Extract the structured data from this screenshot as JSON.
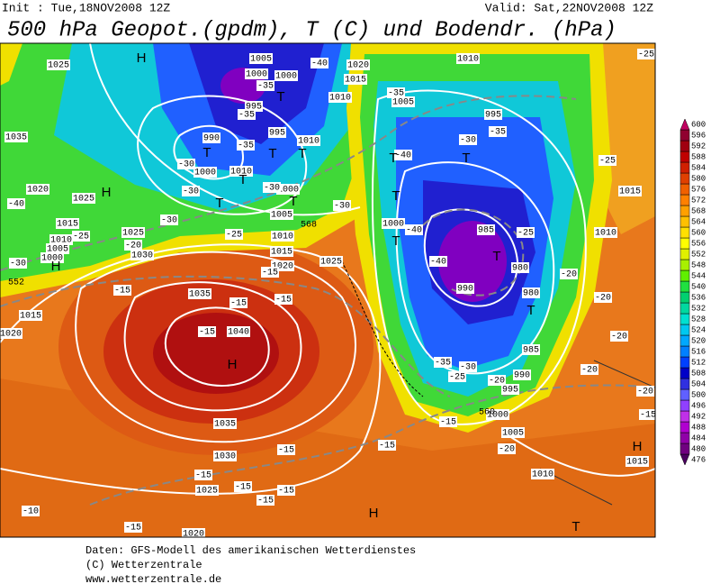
{
  "header": {
    "init": "Init : Tue,18NOV2008 12Z",
    "valid": "Valid: Sat,22NOV2008 12Z",
    "title": "500 hPa Geopot.(gpdm), T (C) und Bodendr. (hPa)"
  },
  "map": {
    "pressure_labels": [
      "1025",
      "1035",
      "1020",
      "1015",
      "1010",
      "1005",
      "1000",
      "1025",
      "1030",
      "1025",
      "1015",
      "1020",
      "1035",
      "1040",
      "1035",
      "1030",
      "1025",
      "1020",
      "1010",
      "1020",
      "1015",
      "1010",
      "1005",
      "995",
      "1005",
      "1000",
      "1000",
      "995",
      "990",
      "995",
      "1010",
      "1000",
      "1010",
      "1000",
      "1005",
      "1010",
      "1015",
      "1020",
      "1025",
      "1000",
      "985",
      "980",
      "990",
      "980",
      "985",
      "990",
      "995",
      "1000",
      "1005",
      "1010",
      "1015",
      "1015",
      "1010"
    ],
    "temperature_labels": [
      "-40",
      "-35",
      "-35",
      "-30",
      "-35",
      "-30",
      "-30",
      "-25",
      "-30",
      "-40",
      "-25",
      "-20",
      "-30",
      "-15",
      "-15",
      "-15",
      "-15",
      "-15",
      "-30",
      "-35",
      "-35",
      "-30",
      "-40",
      "-40",
      "-40",
      "-25",
      "-20",
      "-20",
      "-20",
      "-20",
      "-20",
      "-15",
      "-25",
      "-25",
      "-35",
      "-25",
      "-30",
      "-20",
      "-15",
      "-20",
      "-15",
      "-15",
      "-15",
      "-15",
      "-15",
      "-15",
      "-10",
      "-15"
    ],
    "centers": [
      "H",
      "H",
      "H",
      "H",
      "H",
      "H",
      "T",
      "T",
      "T",
      "T",
      "T",
      "T",
      "T",
      "T",
      "T",
      "T",
      "T",
      "T",
      "T",
      "T"
    ],
    "height_labels": [
      "568",
      "552",
      "560"
    ]
  },
  "legend": {
    "levels": [
      476,
      480,
      484,
      488,
      492,
      496,
      500,
      504,
      508,
      512,
      516,
      520,
      524,
      528,
      532,
      536,
      540,
      544,
      548,
      552,
      556,
      560,
      564,
      568,
      572,
      576,
      580,
      584,
      588,
      592,
      596,
      600
    ]
  },
  "footer": {
    "lines": [
      "Daten: GFS-Modell des amerikanischen Wetterdienstes",
      "(C) Wetterzentrale",
      "www.wetterzentrale.de"
    ]
  }
}
